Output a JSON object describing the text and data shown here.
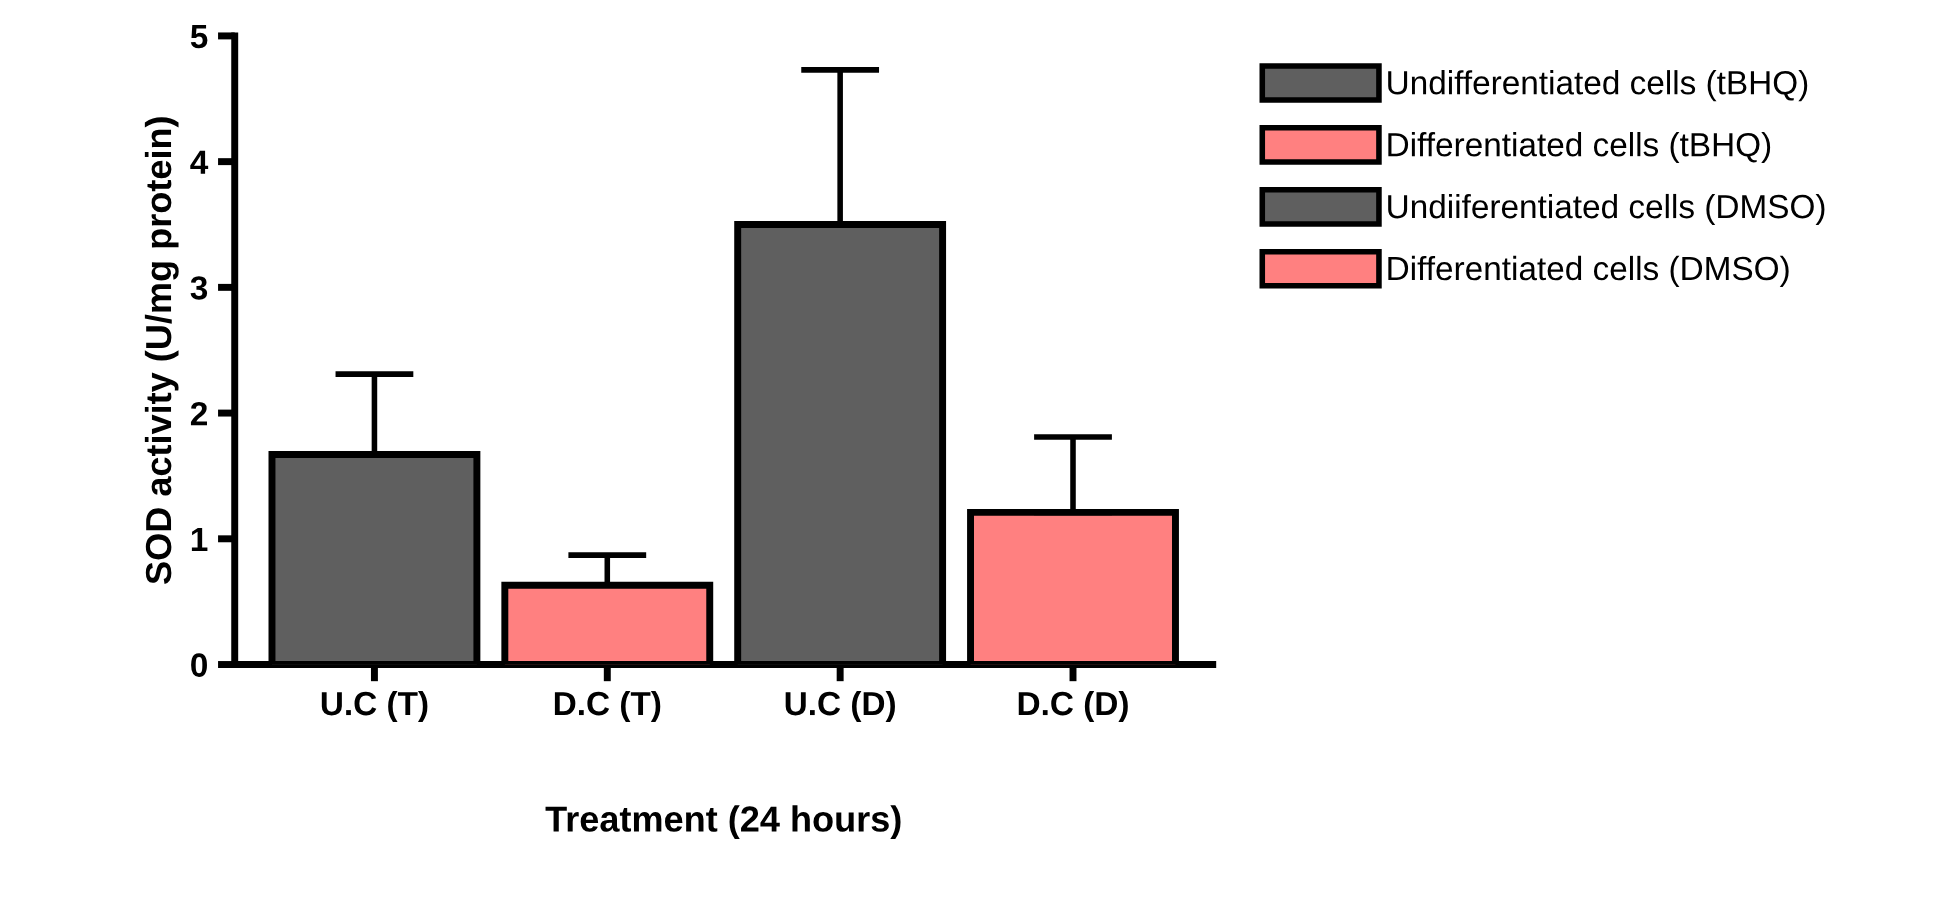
{
  "chart_data": {
    "type": "bar",
    "xlabel": "Treatment (24 hours)",
    "ylabel": "SOD activity (U/mg protein)",
    "categories": [
      "U.C (T)",
      "D.C (T)",
      "U.C (D)",
      "D.C (D)"
    ],
    "series": [
      {
        "name": "Undifferentiated cells (tBHQ)",
        "color": "#5f5f5f",
        "values": [
          1.67,
          null,
          null,
          null
        ],
        "errors": [
          0.64,
          null,
          null,
          null
        ]
      },
      {
        "name": "Differentiated cells (tBHQ)",
        "color": "#ff8080",
        "values": [
          null,
          0.63,
          null,
          null
        ],
        "errors": [
          null,
          0.24,
          null,
          null
        ]
      },
      {
        "name": "Undiiferentiated cells (DMSO)",
        "color": "#5f5f5f",
        "values": [
          null,
          null,
          3.5,
          null
        ],
        "errors": [
          null,
          null,
          1.23,
          null
        ]
      },
      {
        "name": "Differentiated cells (DMSO)",
        "color": "#ff8080",
        "values": [
          null,
          null,
          null,
          1.21
        ],
        "errors": [
          null,
          null,
          null,
          0.6
        ]
      }
    ],
    "ylim": [
      0,
      5
    ],
    "yticks": [
      0,
      1,
      2,
      3,
      4,
      5
    ],
    "grid": false,
    "legend": "right"
  }
}
